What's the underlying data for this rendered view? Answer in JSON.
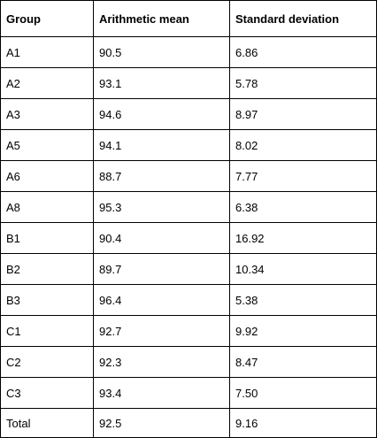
{
  "table": {
    "headers": [
      "Group",
      "Arithmetic mean",
      "Standard deviation"
    ],
    "rows": [
      [
        "A1",
        "90.5",
        "6.86"
      ],
      [
        "A2",
        "93.1",
        "5.78"
      ],
      [
        "A3",
        "94.6",
        "8.97"
      ],
      [
        "A5",
        "94.1",
        "8.02"
      ],
      [
        "A6",
        "88.7",
        "7.77"
      ],
      [
        "A8",
        "95.3",
        "6.38"
      ],
      [
        "B1",
        "90.4",
        "16.92"
      ],
      [
        "B2",
        "89.7",
        "10.34"
      ],
      [
        "B3",
        "96.4",
        "5.38"
      ],
      [
        "C1",
        "92.7",
        "9.92"
      ],
      [
        "C2",
        "92.3",
        "8.47"
      ],
      [
        "C3",
        "93.4",
        "7.50"
      ],
      [
        "Total",
        "92.5",
        "9.16"
      ]
    ]
  }
}
